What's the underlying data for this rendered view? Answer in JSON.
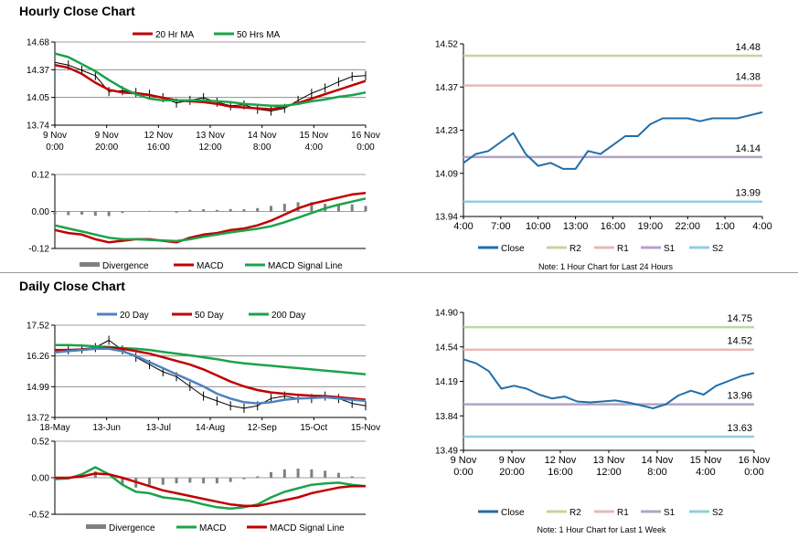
{
  "sections": {
    "hourly_title": "Hourly Close Chart",
    "daily_title": "Daily Close Chart"
  },
  "chart_data": [
    {
      "id": "hourly_price",
      "type": "line",
      "title": "Hourly Close Chart",
      "legend": [
        "20 Hr MA",
        "50 Hrs MA"
      ],
      "yticks": [
        "14.68",
        "14.37",
        "14.05",
        "13.74"
      ],
      "ylim": [
        13.74,
        14.68
      ],
      "xticks": [
        [
          "9 Nov",
          "0:00"
        ],
        [
          "9 Nov",
          "20:00"
        ],
        [
          "12 Nov",
          "16:00"
        ],
        [
          "13 Nov",
          "12:00"
        ],
        [
          "14 Nov",
          "8:00"
        ],
        [
          "15 Nov",
          "4:00"
        ],
        [
          "16 Nov",
          "0:00"
        ]
      ],
      "series": [
        {
          "name": "Close",
          "color": "#000000",
          "values": [
            14.45,
            14.42,
            14.36,
            14.3,
            14.12,
            14.13,
            14.11,
            14.09,
            14.05,
            13.99,
            14.02,
            14.05,
            14.0,
            13.96,
            13.97,
            13.92,
            13.9,
            13.93,
            14.02,
            14.1,
            14.16,
            14.23,
            14.29,
            14.3
          ]
        },
        {
          "name": "20 Hr MA",
          "color": "#c00000",
          "values": [
            14.42,
            14.39,
            14.32,
            14.22,
            14.14,
            14.11,
            14.1,
            14.08,
            14.05,
            14.02,
            14.01,
            14.0,
            13.98,
            13.95,
            13.94,
            13.93,
            13.92,
            13.95,
            13.99,
            14.04,
            14.09,
            14.14,
            14.19,
            14.24
          ]
        },
        {
          "name": "50 Hrs MA",
          "color": "#1aa34a",
          "values": [
            14.55,
            14.51,
            14.43,
            14.35,
            14.25,
            14.16,
            14.09,
            14.04,
            14.02,
            14.02,
            14.02,
            14.02,
            14.01,
            14.0,
            13.98,
            13.97,
            13.96,
            13.96,
            13.98,
            14.01,
            14.03,
            14.06,
            14.08,
            14.11
          ]
        }
      ]
    },
    {
      "id": "hourly_macd",
      "type": "line",
      "legend": [
        "Divergence",
        "MACD",
        "MACD Signal Line"
      ],
      "yticks": [
        "0.12",
        "0.00",
        "-0.12"
      ],
      "ylim": [
        -0.12,
        0.12
      ],
      "series": [
        {
          "name": "MACD",
          "color": "#c00000",
          "values": [
            -0.06,
            -0.07,
            -0.075,
            -0.09,
            -0.1,
            -0.095,
            -0.09,
            -0.09,
            -0.095,
            -0.1,
            -0.085,
            -0.075,
            -0.07,
            -0.06,
            -0.055,
            -0.045,
            -0.03,
            -0.01,
            0.01,
            0.025,
            0.035,
            0.045,
            0.055,
            0.06
          ]
        },
        {
          "name": "MACD Signal Line",
          "color": "#1aa34a",
          "values": [
            -0.045,
            -0.055,
            -0.065,
            -0.075,
            -0.085,
            -0.09,
            -0.09,
            -0.092,
            -0.094,
            -0.096,
            -0.09,
            -0.082,
            -0.075,
            -0.068,
            -0.062,
            -0.056,
            -0.048,
            -0.035,
            -0.02,
            -0.005,
            0.01,
            0.022,
            0.032,
            0.042
          ]
        },
        {
          "name": "Divergence",
          "color": "#808080",
          "values": [
            -0.01,
            -0.012,
            -0.01,
            -0.014,
            -0.015,
            -0.005,
            0.0,
            0.002,
            -0.001,
            -0.004,
            0.005,
            0.007,
            0.005,
            0.008,
            0.007,
            0.011,
            0.018,
            0.025,
            0.03,
            0.03,
            0.025,
            0.023,
            0.023,
            0.018
          ]
        }
      ]
    },
    {
      "id": "hourly_24h",
      "type": "line",
      "note": "Note: 1 Hour Chart for Last 24 Hours",
      "legend": [
        "Close",
        "R2",
        "R1",
        "S1",
        "S2"
      ],
      "yticks": [
        "14.52",
        "14.37",
        "14.23",
        "14.09",
        "13.94"
      ],
      "ylim": [
        13.94,
        14.52
      ],
      "xticks": [
        "4:00",
        "7:00",
        "10:00",
        "13:00",
        "16:00",
        "19:00",
        "22:00",
        "1:00",
        "4:00"
      ],
      "levels": [
        {
          "name": "R2",
          "value": 14.48,
          "label": "14.48",
          "color": "#c3d69b"
        },
        {
          "name": "R1",
          "value": 14.38,
          "label": "14.38",
          "color": "#e6b9b8"
        },
        {
          "name": "S1",
          "value": 14.14,
          "label": "14.14",
          "color": "#b3a2c7"
        },
        {
          "name": "S2",
          "value": 13.99,
          "label": "13.99",
          "color": "#93cddd"
        }
      ],
      "series": [
        {
          "name": "Close",
          "color": "#1f6fab",
          "values": [
            14.12,
            14.15,
            14.16,
            14.19,
            14.22,
            14.15,
            14.11,
            14.12,
            14.1,
            14.1,
            14.16,
            14.15,
            14.18,
            14.21,
            14.21,
            14.25,
            14.27,
            14.27,
            14.27,
            14.26,
            14.27,
            14.27,
            14.27,
            14.28,
            14.29
          ]
        }
      ]
    },
    {
      "id": "daily_price",
      "type": "line",
      "title": "Daily Close Chart",
      "legend": [
        "20 Day",
        "50 Day",
        "200 Day"
      ],
      "yticks": [
        "17.52",
        "16.26",
        "14.99",
        "13.72"
      ],
      "ylim": [
        13.72,
        17.52
      ],
      "xticks": [
        "18-May",
        "13-Jun",
        "13-Jul",
        "14-Aug",
        "12-Sep",
        "15-Oct",
        "15-Nov"
      ],
      "series": [
        {
          "name": "Close",
          "color": "#000000",
          "values": [
            16.45,
            16.5,
            16.55,
            16.6,
            16.9,
            16.5,
            16.2,
            15.9,
            15.6,
            15.4,
            15.0,
            14.6,
            14.4,
            14.2,
            14.1,
            14.2,
            14.5,
            14.6,
            14.5,
            14.5,
            14.6,
            14.5,
            14.3,
            14.2
          ]
        },
        {
          "name": "20 Day",
          "color": "#4f81bd",
          "values": [
            16.4,
            16.45,
            16.5,
            16.55,
            16.55,
            16.45,
            16.25,
            16.0,
            15.75,
            15.5,
            15.25,
            15.0,
            14.7,
            14.5,
            14.35,
            14.3,
            14.35,
            14.45,
            14.5,
            14.52,
            14.55,
            14.5,
            14.45,
            14.4
          ]
        },
        {
          "name": "50 Day",
          "color": "#c00000",
          "values": [
            16.5,
            16.5,
            16.52,
            16.55,
            16.6,
            16.55,
            16.45,
            16.35,
            16.2,
            16.05,
            15.9,
            15.7,
            15.45,
            15.2,
            15.0,
            14.85,
            14.75,
            14.7,
            14.65,
            14.62,
            14.6,
            14.55,
            14.5,
            14.45
          ]
        },
        {
          "name": "200 Day",
          "color": "#1aa34a",
          "values": [
            16.7,
            16.7,
            16.68,
            16.65,
            16.62,
            16.58,
            16.55,
            16.5,
            16.42,
            16.35,
            16.28,
            16.2,
            16.12,
            16.02,
            15.95,
            15.9,
            15.85,
            15.8,
            15.75,
            15.7,
            15.65,
            15.6,
            15.55,
            15.5
          ]
        }
      ]
    },
    {
      "id": "daily_macd",
      "type": "line",
      "legend": [
        "Divergence",
        "MACD",
        "MACD Signal Line"
      ],
      "yticks": [
        "0.52",
        "0.00",
        "-0.52"
      ],
      "ylim": [
        -0.52,
        0.52
      ],
      "series": [
        {
          "name": "MACD",
          "color": "#1aa34a",
          "values": [
            -0.02,
            -0.01,
            0.05,
            0.15,
            0.05,
            -0.1,
            -0.2,
            -0.22,
            -0.28,
            -0.3,
            -0.33,
            -0.38,
            -0.42,
            -0.44,
            -0.42,
            -0.38,
            -0.28,
            -0.2,
            -0.15,
            -0.1,
            -0.08,
            -0.07,
            -0.1,
            -0.12
          ]
        },
        {
          "name": "MACD Signal Line",
          "color": "#c00000",
          "values": [
            0.0,
            0.0,
            0.02,
            0.06,
            0.05,
            0.0,
            -0.06,
            -0.12,
            -0.18,
            -0.22,
            -0.26,
            -0.3,
            -0.34,
            -0.38,
            -0.4,
            -0.4,
            -0.36,
            -0.32,
            -0.28,
            -0.22,
            -0.18,
            -0.14,
            -0.12,
            -0.12
          ]
        },
        {
          "name": "Divergence",
          "color": "#808080",
          "values": [
            -0.02,
            -0.01,
            0.03,
            0.09,
            0.0,
            -0.1,
            -0.14,
            -0.1,
            -0.1,
            -0.08,
            -0.07,
            -0.08,
            -0.08,
            -0.06,
            -0.02,
            0.02,
            0.08,
            0.12,
            0.13,
            0.12,
            0.1,
            0.07,
            0.02,
            0.0
          ]
        }
      ]
    },
    {
      "id": "hourly_week",
      "type": "line",
      "note": "Note: 1 Hour Chart for Last 1 Week",
      "legend": [
        "Close",
        "R2",
        "R1",
        "S1",
        "S2"
      ],
      "yticks": [
        "14.90",
        "14.54",
        "14.19",
        "13.84",
        "13.49"
      ],
      "ylim": [
        13.49,
        14.9
      ],
      "xticks": [
        [
          "9 Nov",
          "0:00"
        ],
        [
          "9 Nov",
          "20:00"
        ],
        [
          "12 Nov",
          "16:00"
        ],
        [
          "13 Nov",
          "12:00"
        ],
        [
          "14 Nov",
          "8:00"
        ],
        [
          "15 Nov",
          "4:00"
        ],
        [
          "16 Nov",
          "0:00"
        ]
      ],
      "levels": [
        {
          "name": "R2",
          "value": 14.75,
          "label": "14.75",
          "color": "#c3d69b"
        },
        {
          "name": "R1",
          "value": 14.52,
          "label": "14.52",
          "color": "#e6b9b8"
        },
        {
          "name": "S1",
          "value": 13.96,
          "label": "13.96",
          "color": "#b3a2c7"
        },
        {
          "name": "S2",
          "value": 13.63,
          "label": "13.63",
          "color": "#93cddd"
        }
      ],
      "series": [
        {
          "name": "Close",
          "color": "#1f6fab",
          "values": [
            14.42,
            14.38,
            14.3,
            14.12,
            14.15,
            14.12,
            14.06,
            14.02,
            14.04,
            13.99,
            13.98,
            13.99,
            14.0,
            13.98,
            13.95,
            13.92,
            13.96,
            14.05,
            14.1,
            14.06,
            14.15,
            14.2,
            14.25,
            14.28
          ]
        }
      ]
    }
  ]
}
